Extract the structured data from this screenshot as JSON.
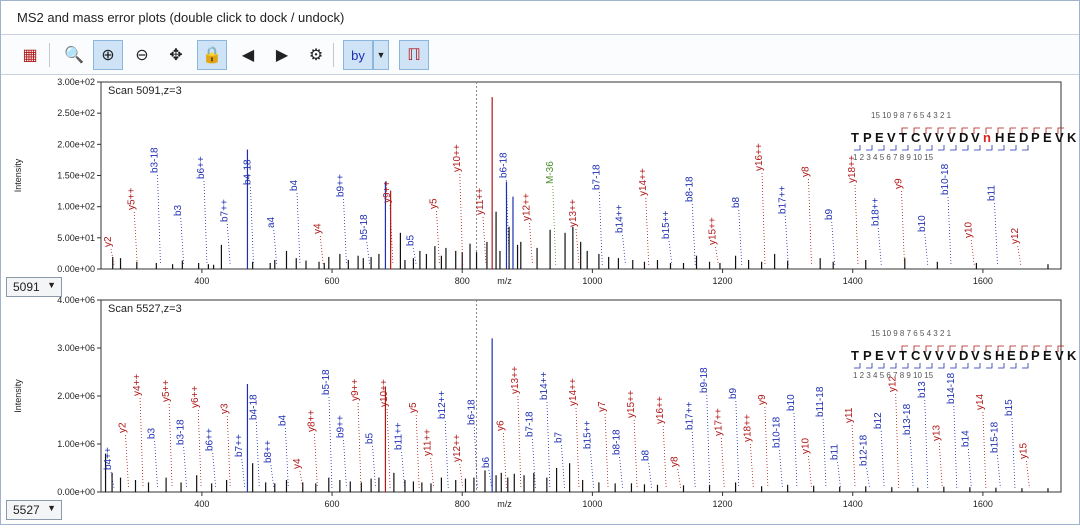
{
  "window": {
    "title": "MS2 and mass error plots (double click to dock / undock)"
  },
  "toolbar": {
    "buttons": [
      {
        "name": "table-view-button",
        "icon": "table-icon",
        "glyph": "▦",
        "active": false
      },
      {
        "name": "zoom-reset-button",
        "icon": "zoom-reset-icon",
        "glyph": "🔍",
        "active": false
      },
      {
        "name": "zoom-in-button",
        "icon": "zoom-in-icon",
        "glyph": "⊕",
        "active": true
      },
      {
        "name": "zoom-out-button",
        "icon": "zoom-out-icon",
        "glyph": "⊖",
        "active": false
      },
      {
        "name": "pan-button",
        "icon": "move-icon",
        "glyph": "✥",
        "active": false
      },
      {
        "name": "lock-button",
        "icon": "lock-icon",
        "glyph": "🔒",
        "active": true
      },
      {
        "name": "zoom-prev-button",
        "icon": "zoom-prev-icon",
        "glyph": "◀",
        "active": false
      },
      {
        "name": "zoom-next-button",
        "icon": "zoom-next-icon",
        "glyph": "▶",
        "active": false
      },
      {
        "name": "settings-button",
        "icon": "gear-icon",
        "glyph": "⚙",
        "active": false
      },
      {
        "name": "ion-type-button",
        "icon": "by-ions-icon",
        "glyph": "by",
        "active": true
      },
      {
        "name": "ion-type-dropdown",
        "icon": "chevron-down-icon",
        "glyph": "▼",
        "active": true
      },
      {
        "name": "peak-labels-button",
        "icon": "peak-labels-icon",
        "glyph": "ℿ",
        "active": true
      }
    ]
  },
  "plots": [
    {
      "scan_label": "Scan 5091,z=3",
      "scan_select": "5091",
      "ylabel": "Intensity",
      "xlabel": "m/z",
      "yticks": [
        "0.00e+00",
        "5.00e+01",
        "1.00e+02",
        "1.50e+02",
        "2.00e+02",
        "2.50e+02",
        "3.00e+02"
      ],
      "xticks": [
        "400",
        "600",
        "800",
        "1000",
        "1200",
        "1400",
        "1600"
      ],
      "sequence": [
        "T",
        "P",
        "E",
        "V",
        "T",
        "C",
        "V",
        "V",
        "V",
        "D",
        "V",
        "n",
        "H",
        "E",
        "D",
        "P",
        "E",
        "V",
        "K"
      ],
      "highlight_index": 11,
      "y_top_numbers": "15        10 9 8 7 6 5 4 3 2 1",
      "b_bottom_numbers": "1 2 3 4 5 6 7 8 9 10             15",
      "labels": [
        {
          "t": "y2",
          "c": "r"
        },
        {
          "t": "y5++",
          "c": "r"
        },
        {
          "t": "b3-18",
          "c": "b"
        },
        {
          "t": "b3",
          "c": "b"
        },
        {
          "t": "b6++",
          "c": "b"
        },
        {
          "t": "b7++",
          "c": "b"
        },
        {
          "t": "b4-18",
          "c": "b"
        },
        {
          "t": "a4",
          "c": "b"
        },
        {
          "t": "b4",
          "c": "b"
        },
        {
          "t": "y4",
          "c": "r"
        },
        {
          "t": "b9++",
          "c": "b"
        },
        {
          "t": "b5-18",
          "c": "b"
        },
        {
          "t": "y9++",
          "c": "r"
        },
        {
          "t": "b5",
          "c": "b"
        },
        {
          "t": "y5",
          "c": "r"
        },
        {
          "t": "y10++",
          "c": "r"
        },
        {
          "t": "y11++",
          "c": "r"
        },
        {
          "t": "b6-18",
          "c": "b"
        },
        {
          "t": "y12++",
          "c": "r"
        },
        {
          "t": "M-36",
          "c": "g"
        },
        {
          "t": "y13++",
          "c": "r"
        },
        {
          "t": "b7-18",
          "c": "b"
        },
        {
          "t": "b14++",
          "c": "b"
        },
        {
          "t": "y14++",
          "c": "r"
        },
        {
          "t": "b15++",
          "c": "b"
        },
        {
          "t": "b8-18",
          "c": "b"
        },
        {
          "t": "y15++",
          "c": "r"
        },
        {
          "t": "b8",
          "c": "b"
        },
        {
          "t": "y16++",
          "c": "r"
        },
        {
          "t": "b17++",
          "c": "b"
        },
        {
          "t": "y8",
          "c": "r"
        },
        {
          "t": "b9",
          "c": "b"
        },
        {
          "t": "y18++",
          "c": "r"
        },
        {
          "t": "b18++",
          "c": "b"
        },
        {
          "t": "y9",
          "c": "r"
        },
        {
          "t": "b10",
          "c": "b"
        },
        {
          "t": "b10-18",
          "c": "b"
        },
        {
          "t": "y10",
          "c": "r"
        },
        {
          "t": "b11",
          "c": "b"
        },
        {
          "t": "y12",
          "c": "r"
        }
      ]
    },
    {
      "scan_label": "Scan 5527,z=3",
      "scan_select": "5527",
      "ylabel": "Intensity",
      "xlabel": "m/z",
      "yticks": [
        "0.00e+00",
        "1.00e+06",
        "2.00e+06",
        "3.00e+06",
        "4.00e+06"
      ],
      "xticks": [
        "400",
        "600",
        "800",
        "1000",
        "1200",
        "1400",
        "1600"
      ],
      "sequence": [
        "T",
        "P",
        "E",
        "V",
        "T",
        "C",
        "V",
        "V",
        "V",
        "D",
        "V",
        "S",
        "H",
        "E",
        "D",
        "P",
        "E",
        "V",
        "K"
      ],
      "highlight_index": -1,
      "y_top_numbers": "15        10 9 8 7 6 5 4 3 2 1",
      "b_bottom_numbers": "1 2 3 4 5 6 7 8 9 10             15",
      "labels": [
        {
          "t": "b4++",
          "c": "b"
        },
        {
          "t": "y2",
          "c": "r"
        },
        {
          "t": "y4++",
          "c": "r"
        },
        {
          "t": "b3",
          "c": "b"
        },
        {
          "t": "y5++",
          "c": "r"
        },
        {
          "t": "b3-18",
          "c": "b"
        },
        {
          "t": "y6++",
          "c": "r"
        },
        {
          "t": "b6++",
          "c": "b"
        },
        {
          "t": "y3",
          "c": "r"
        },
        {
          "t": "b7++",
          "c": "b"
        },
        {
          "t": "b4-18",
          "c": "b"
        },
        {
          "t": "b8++",
          "c": "b"
        },
        {
          "t": "b4",
          "c": "b"
        },
        {
          "t": "y4",
          "c": "r"
        },
        {
          "t": "y8++",
          "c": "r"
        },
        {
          "t": "b5-18",
          "c": "b"
        },
        {
          "t": "b9++",
          "c": "b"
        },
        {
          "t": "y9++",
          "c": "r"
        },
        {
          "t": "b5",
          "c": "b"
        },
        {
          "t": "y10++",
          "c": "r"
        },
        {
          "t": "b11++",
          "c": "b"
        },
        {
          "t": "y5",
          "c": "r"
        },
        {
          "t": "y11++",
          "c": "r"
        },
        {
          "t": "b12++",
          "c": "b"
        },
        {
          "t": "y12++",
          "c": "r"
        },
        {
          "t": "b6-18",
          "c": "b"
        },
        {
          "t": "b6",
          "c": "b"
        },
        {
          "t": "y6",
          "c": "r"
        },
        {
          "t": "y13++",
          "c": "r"
        },
        {
          "t": "b7-18",
          "c": "b"
        },
        {
          "t": "b14++",
          "c": "b"
        },
        {
          "t": "b7",
          "c": "b"
        },
        {
          "t": "y14++",
          "c": "r"
        },
        {
          "t": "b15++",
          "c": "b"
        },
        {
          "t": "y7",
          "c": "r"
        },
        {
          "t": "b8-18",
          "c": "b"
        },
        {
          "t": "y15++",
          "c": "r"
        },
        {
          "t": "b8",
          "c": "b"
        },
        {
          "t": "y16++",
          "c": "r"
        },
        {
          "t": "y8",
          "c": "r"
        },
        {
          "t": "b17++",
          "c": "b"
        },
        {
          "t": "b9-18",
          "c": "b"
        },
        {
          "t": "y17++",
          "c": "r"
        },
        {
          "t": "b9",
          "c": "b"
        },
        {
          "t": "y18++",
          "c": "r"
        },
        {
          "t": "y9",
          "c": "r"
        },
        {
          "t": "b10-18",
          "c": "b"
        },
        {
          "t": "b10",
          "c": "b"
        },
        {
          "t": "y10",
          "c": "r"
        },
        {
          "t": "b11-18",
          "c": "b"
        },
        {
          "t": "b11",
          "c": "b"
        },
        {
          "t": "y11",
          "c": "r"
        },
        {
          "t": "b12-18",
          "c": "b"
        },
        {
          "t": "b12",
          "c": "b"
        },
        {
          "t": "y12",
          "c": "r"
        },
        {
          "t": "b13-18",
          "c": "b"
        },
        {
          "t": "b13",
          "c": "b"
        },
        {
          "t": "y13",
          "c": "r"
        },
        {
          "t": "b14-18",
          "c": "b"
        },
        {
          "t": "b14",
          "c": "b"
        },
        {
          "t": "y14",
          "c": "r"
        },
        {
          "t": "b15-18",
          "c": "b"
        },
        {
          "t": "b15",
          "c": "b"
        },
        {
          "t": "y15",
          "c": "r"
        }
      ]
    }
  ],
  "colors": {
    "b_ion": "#1f2fb3",
    "y_ion": "#b01818",
    "neutral_loss": "#4c8c2c",
    "accent": "#cfe3f7"
  },
  "chart_data": [
    {
      "type": "bar",
      "title": "Scan 5091,z=3",
      "xlabel": "m/z",
      "ylabel": "Intensity",
      "xlim": [
        245,
        1720
      ],
      "ylim": [
        0,
        310
      ],
      "x": [
        263,
        275,
        300,
        330,
        355,
        370,
        395,
        410,
        418,
        430,
        470,
        478,
        505,
        512,
        530,
        545,
        560,
        580,
        588,
        595,
        612,
        625,
        640,
        648,
        660,
        672,
        682,
        690,
        705,
        712,
        725,
        735,
        745,
        758,
        768,
        775,
        790,
        800,
        812,
        822,
        838,
        846,
        852,
        858,
        868,
        872,
        878,
        885,
        890,
        915,
        935,
        958,
        970,
        982,
        992,
        1010,
        1025,
        1040,
        1062,
        1080,
        1100,
        1120,
        1140,
        1160,
        1180,
        1196,
        1220,
        1240,
        1260,
        1280,
        1300,
        1350,
        1370,
        1420,
        1480,
        1530,
        1590,
        1700
      ],
      "values": [
        20,
        18,
        12,
        10,
        8,
        14,
        10,
        8,
        7,
        40,
        198,
        12,
        10,
        15,
        30,
        18,
        14,
        12,
        10,
        20,
        25,
        15,
        22,
        18,
        20,
        25,
        145,
        130,
        60,
        15,
        18,
        30,
        25,
        38,
        22,
        35,
        30,
        28,
        42,
        28,
        45,
        285,
        95,
        30,
        145,
        70,
        120,
        40,
        45,
        35,
        65,
        60,
        70,
        45,
        30,
        25,
        20,
        18,
        15,
        12,
        15,
        10,
        10,
        22,
        12,
        10,
        22,
        15,
        12,
        25,
        14,
        18,
        12,
        15,
        18,
        12,
        10,
        8
      ]
    },
    {
      "type": "bar",
      "title": "Scan 5527,z=3",
      "xlabel": "m/z",
      "ylabel": "Intensity",
      "xlim": [
        245,
        1720
      ],
      "ylim": [
        0,
        4000000
      ],
      "x": [
        252,
        262,
        275,
        298,
        318,
        345,
        368,
        392,
        415,
        438,
        470,
        478,
        498,
        512,
        530,
        555,
        575,
        595,
        612,
        628,
        645,
        660,
        672,
        682,
        695,
        712,
        725,
        738,
        752,
        768,
        790,
        805,
        818,
        835,
        846,
        852,
        860,
        870,
        880,
        895,
        910,
        930,
        945,
        965,
        985,
        1010,
        1035,
        1060,
        1080,
        1100,
        1140,
        1180,
        1220,
        1260,
        1300,
        1340,
        1380,
        1420,
        1460,
        1500,
        1540,
        1580,
        1620,
        1660,
        1700
      ],
      "values": [
        800000,
        400000,
        300000,
        250000,
        200000,
        300000,
        200000,
        350000,
        180000,
        250000,
        2250000,
        600000,
        200000,
        180000,
        250000,
        200000,
        180000,
        300000,
        250000,
        220000,
        200000,
        280000,
        300000,
        2200000,
        400000,
        250000,
        220000,
        200000,
        180000,
        300000,
        250000,
        280000,
        300000,
        450000,
        3200000,
        350000,
        400000,
        300000,
        380000,
        350000,
        400000,
        300000,
        500000,
        600000,
        250000,
        200000,
        180000,
        180000,
        160000,
        150000,
        140000,
        150000,
        200000,
        120000,
        150000,
        130000,
        110000,
        120000,
        100000,
        90000,
        110000,
        100000,
        90000,
        80000,
        80000
      ]
    }
  ]
}
